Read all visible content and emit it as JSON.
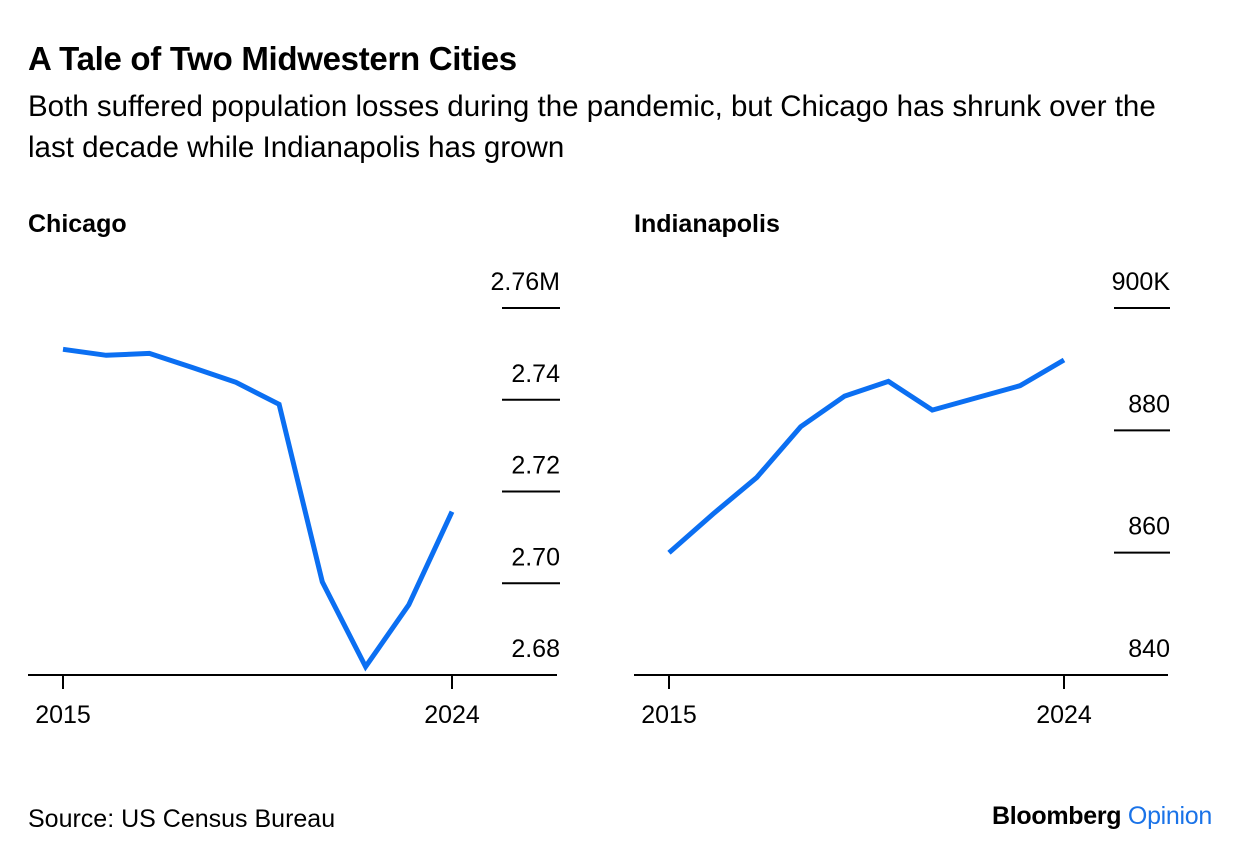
{
  "title": "A Tale of Two Midwestern Cities",
  "subtitle": "Both suffered population losses during the pandemic, but Chicago has shrunk over the last decade while Indianapolis has grown",
  "source": "Source: US Census Bureau",
  "brand": {
    "name": "Bloomberg",
    "suffix": "Opinion"
  },
  "colors": {
    "line": "#0b6ff2",
    "axis": "#000000"
  },
  "chart_data": [
    {
      "type": "line",
      "title": "Chicago",
      "x": [
        2015,
        2016,
        2017,
        2018,
        2019,
        2020,
        2021,
        2022,
        2023,
        2024
      ],
      "series": [
        {
          "values": [
            2.751,
            2.7497,
            2.7501,
            2.747,
            2.7438,
            2.739,
            2.7003,
            2.6818,
            2.6953,
            2.7156
          ]
        }
      ],
      "ylim": [
        2.68,
        2.76
      ],
      "yticks": [
        2.76,
        2.74,
        2.72,
        2.7,
        2.68
      ],
      "ytick_labels": [
        "2.76M",
        "2.74",
        "2.72",
        "2.70",
        "2.68"
      ],
      "xticks": [
        2015,
        2024
      ],
      "xtick_labels": [
        "2015",
        "2024"
      ],
      "grid": false
    },
    {
      "type": "line",
      "title": "Indianapolis",
      "x": [
        2015,
        2016,
        2017,
        2018,
        2019,
        2020,
        2021,
        2022,
        2023,
        2024
      ],
      "series": [
        {
          "values": [
            860,
            866.3,
            872.3,
            880.6,
            885.6,
            888.0,
            883.3,
            885.3,
            887.3,
            891.5
          ]
        }
      ],
      "ylim": [
        840,
        900
      ],
      "yticks": [
        900,
        880,
        860,
        840
      ],
      "ytick_labels": [
        "900K",
        "880",
        "860",
        "840"
      ],
      "xticks": [
        2015,
        2024
      ],
      "xtick_labels": [
        "2015",
        "2024"
      ],
      "grid": false
    }
  ]
}
